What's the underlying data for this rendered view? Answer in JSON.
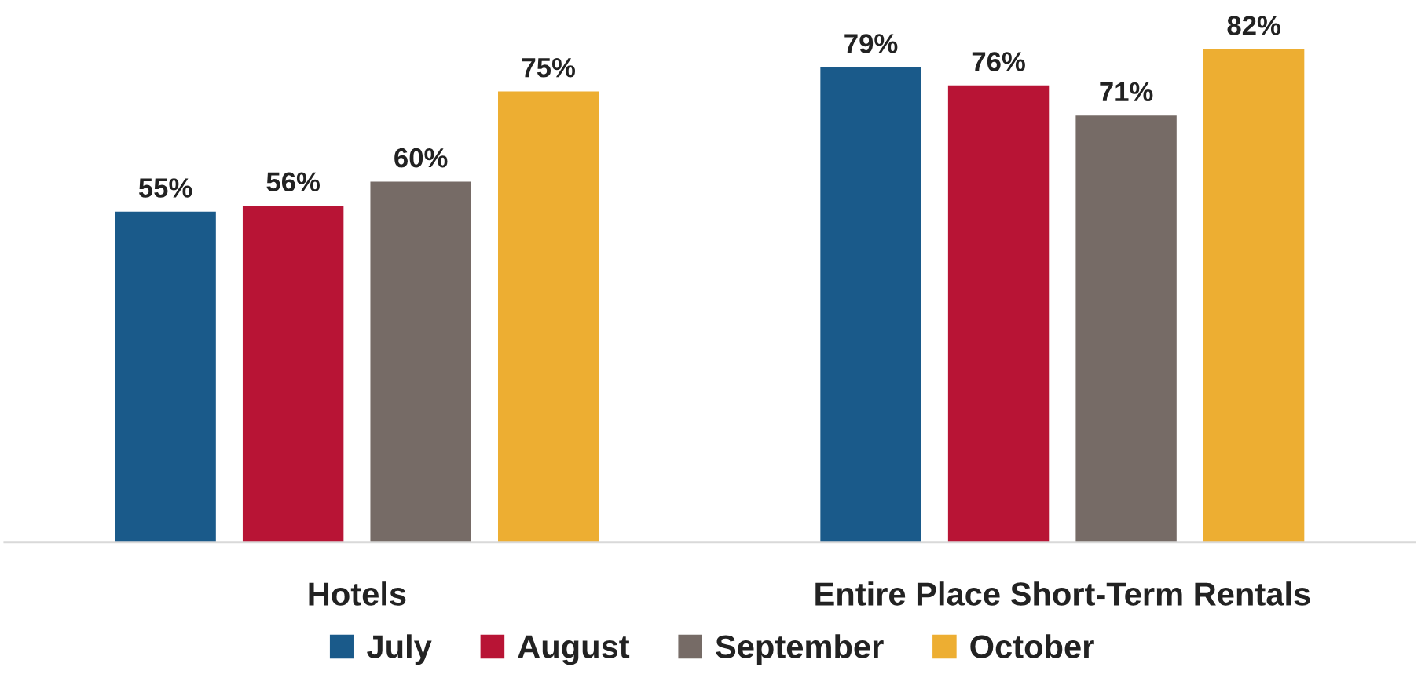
{
  "chart_data": {
    "type": "bar",
    "categories": [
      "Hotels",
      "Entire Place Short-Term Rentals"
    ],
    "series": [
      {
        "name": "July",
        "color": "#1a5a8a",
        "values": [
          55,
          79
        ],
        "value_labels": [
          "55%",
          "79%"
        ]
      },
      {
        "name": "August",
        "color": "#b81435",
        "values": [
          56,
          76
        ],
        "value_labels": [
          "56%",
          "76%"
        ]
      },
      {
        "name": "September",
        "color": "#766b66",
        "values": [
          60,
          71
        ],
        "value_labels": [
          "60%",
          "71%"
        ]
      },
      {
        "name": "October",
        "color": "#edae32",
        "values": [
          75,
          82
        ],
        "value_labels": [
          "75%",
          "82%"
        ]
      }
    ],
    "grid": false,
    "legend": "bottom",
    "tick_labels": "x"
  }
}
